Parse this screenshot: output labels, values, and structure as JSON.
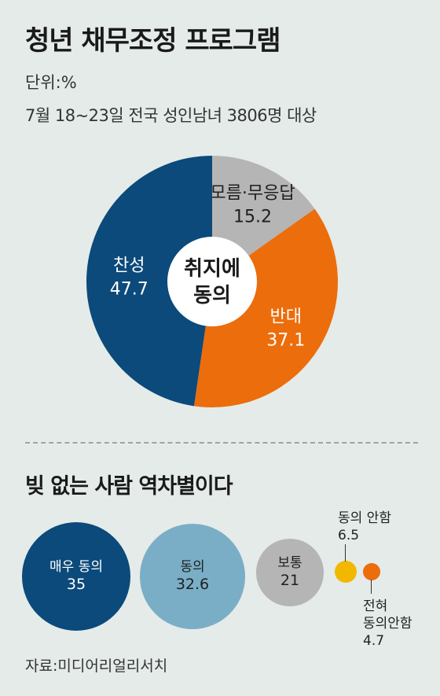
{
  "title": "청년 채무조정 프로그램",
  "unit": "단위:%",
  "description": "7월 18~23일 전국 성인남녀 3806명 대상",
  "chart_data": [
    {
      "type": "pie",
      "center_label": [
        "취지에",
        "동의"
      ],
      "slices": [
        {
          "label": "모름·무응답",
          "value": 15.2,
          "color": "#b5b5b5",
          "text_color": "#1f1f1f"
        },
        {
          "label": "반대",
          "value": 37.1,
          "color": "#ec6d0b",
          "text_color": "#ffffff"
        },
        {
          "label": "찬성",
          "value": 47.7,
          "color": "#0b4a7a",
          "text_color": "#ffffff"
        }
      ]
    },
    {
      "type": "bubble",
      "title": "빚 없는 사람 역차별이다",
      "items": [
        {
          "label": "매우 동의",
          "value": 35,
          "color": "#0b4a7a",
          "text_color": "#ffffff"
        },
        {
          "label": "동의",
          "value": 32.6,
          "color": "#7aaec6",
          "text_color": "#1f1f1f"
        },
        {
          "label": "보통",
          "value": 21,
          "color": "#b5b5b5",
          "text_color": "#1f1f1f"
        },
        {
          "label": "동의 안함",
          "value": 6.5,
          "color": "#f2b800",
          "text_color": "#1f1f1f"
        },
        {
          "label": "전혀 동의안함",
          "label_lines": [
            "전혀",
            "동의안함"
          ],
          "value": 4.7,
          "color": "#ec6d0b",
          "text_color": "#1f1f1f"
        }
      ]
    }
  ],
  "source": "자료:미디어리얼리서치"
}
